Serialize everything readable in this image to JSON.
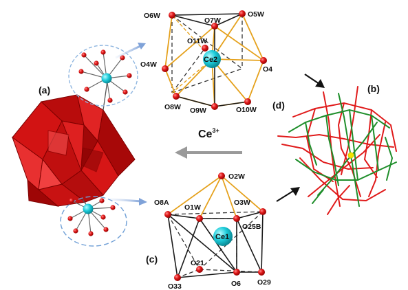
{
  "panels": {
    "a": "(a)",
    "b": "(b)",
    "c": "(c)",
    "d": "(d)"
  },
  "ion": {
    "base": "Ce",
    "charge": "3+"
  },
  "cluster_d": {
    "center": "Ce2",
    "atoms": [
      "O6W",
      "O7W",
      "O5W",
      "O11W",
      "O4W",
      "O4",
      "O8W",
      "O9W",
      "O10W"
    ]
  },
  "cluster_c": {
    "center": "Ce1",
    "atoms": [
      "O2W",
      "O8A",
      "O1W",
      "O3W",
      "O25B",
      "O21",
      "O33",
      "O6",
      "O29"
    ]
  },
  "colors": {
    "oxygen": "#d81c1c",
    "cerium": "#19c8d6",
    "polyhedra": "#c40f0f",
    "bond_gold": "#e5a11c",
    "net_red": "#e01a1a",
    "net_green": "#1e8e2a",
    "node_yellow": "#f2e200"
  }
}
